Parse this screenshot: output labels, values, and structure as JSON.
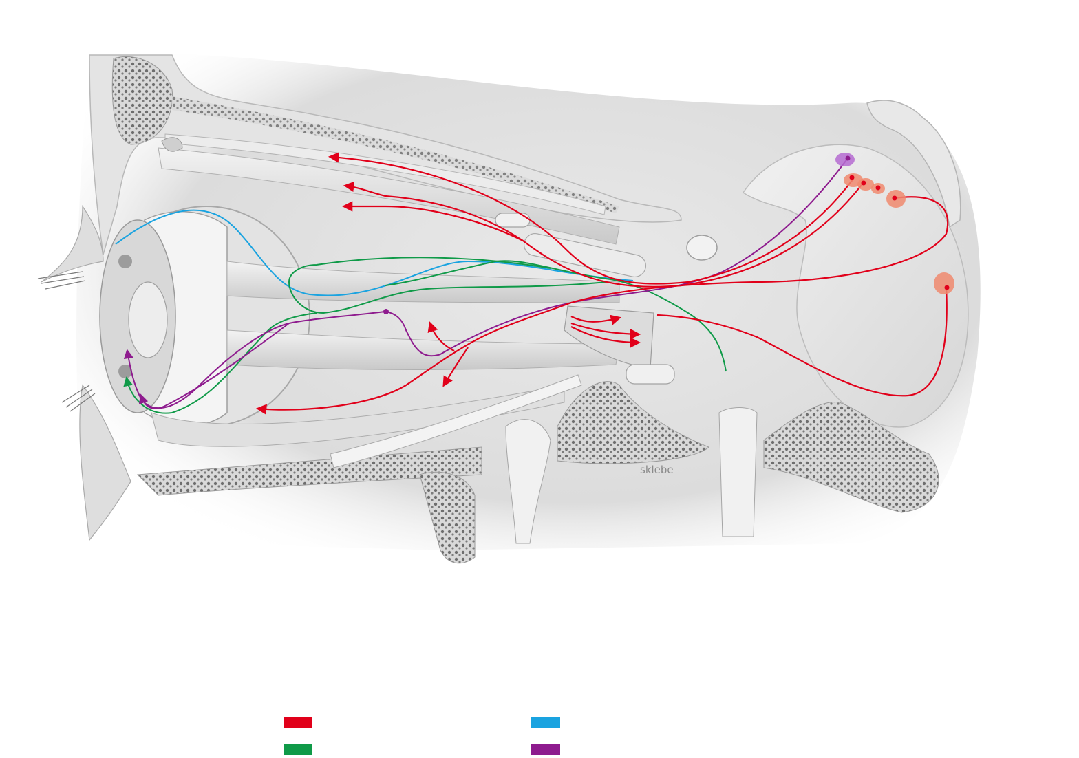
{
  "illustration": {
    "signature": "sklebe",
    "background_color": "#ffffff",
    "tissue_color": "#e6e6e6",
    "bone_color": "#d4d4d4"
  },
  "pathways": {
    "red": "#e1001a",
    "green": "#0f9a48",
    "blue": "#1aa3e0",
    "purple": "#8e1b8e",
    "nucleus_red": "#f08a6e",
    "nucleus_purple": "#b56bd1"
  },
  "legend": [
    {
      "color": "#e1001a",
      "label": ""
    },
    {
      "color": "#1aa3e0",
      "label": ""
    },
    {
      "color": "#0f9a48",
      "label": ""
    },
    {
      "color": "#8e1b8e",
      "label": ""
    }
  ]
}
